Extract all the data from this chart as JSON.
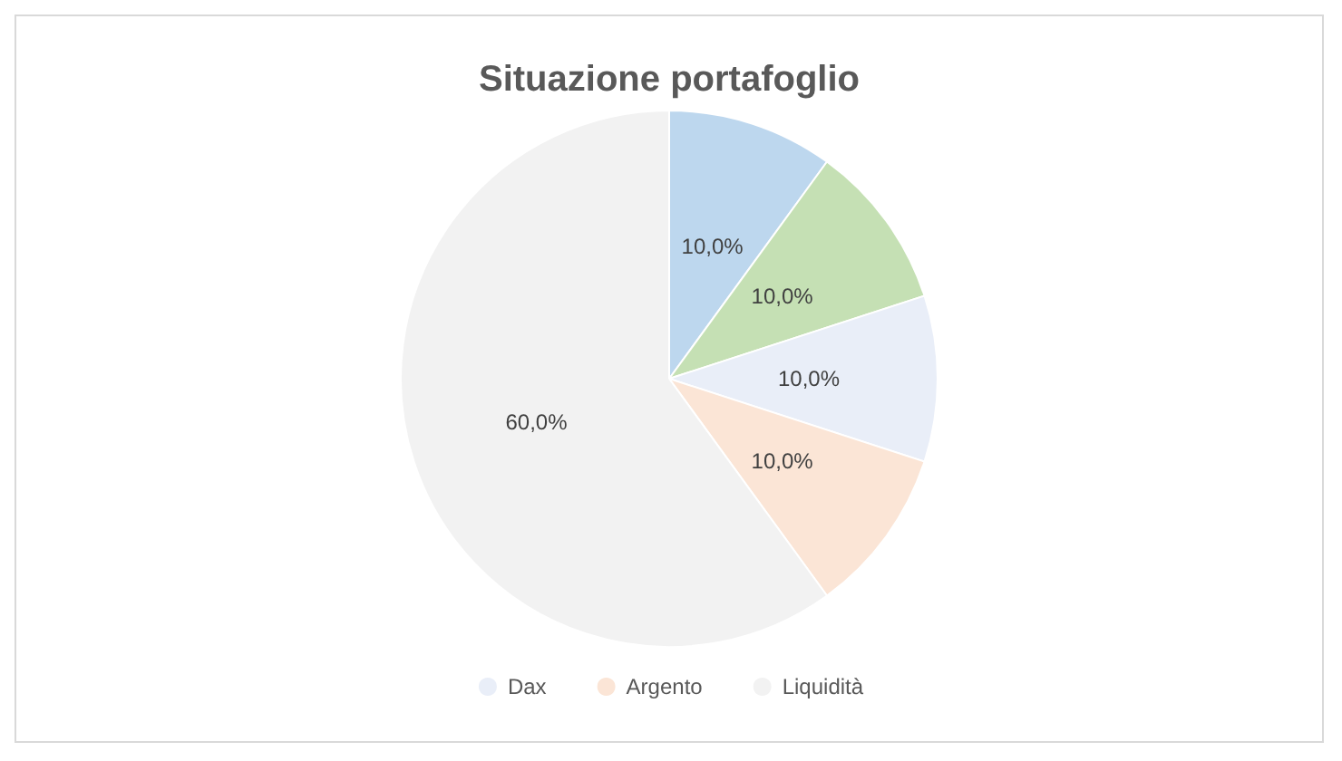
{
  "chart_data": {
    "type": "pie",
    "title": "Situazione portafoglio",
    "categories": [
      null,
      null,
      "Dax",
      "Argento",
      "Liquidità"
    ],
    "values": [
      10,
      10,
      10,
      10,
      60
    ],
    "colors": [
      "#bdd7ee",
      "#c5e0b4",
      "#e9eef8",
      "#fbe5d6",
      "#f2f2f2"
    ],
    "value_labels": [
      "10,0%",
      "10,0%",
      "10,0%",
      "10,0%",
      "60,0%"
    ],
    "legend": "bottom"
  }
}
